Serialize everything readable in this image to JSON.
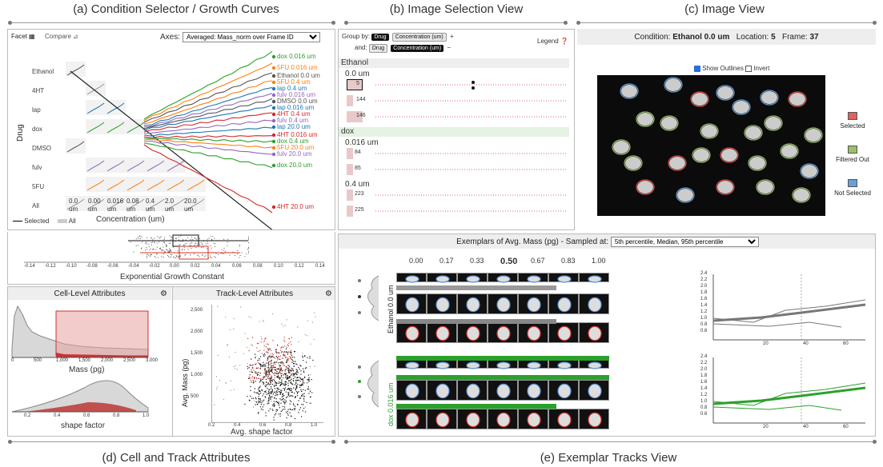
{
  "titles": {
    "a": "(a) Condition Selector / Growth Curves",
    "b": "(b) Image Selection View",
    "c": "(c) Image View",
    "d": "(d) Cell and Track Attributes",
    "e": "(e) Exemplar Tracks View"
  },
  "panelA": {
    "facet_label": "Facet",
    "compare_label": "Compare",
    "axes_label": "Axes:",
    "axes_value": "Averaged: Mass_norm over Frame ID",
    "drug_axis_label": "Drug",
    "drugs": [
      "Ethanol",
      "4HT",
      "lap",
      "dox",
      "DMSO",
      "fulv",
      "5FU",
      "All"
    ],
    "concentrations": [
      "0.0 um",
      "0.00 um",
      "0.016 um",
      "0.08 um",
      "0.4 um",
      "2.0 um",
      "20.0 um"
    ],
    "concentration_axis_label": "Concentration (um)",
    "legend_selected": "Selected",
    "legend_all": "All",
    "curve_labels": [
      {
        "text": "dox 0.016 um",
        "color": "#2ca02c"
      },
      {
        "text": "5FU 0.016 um",
        "color": "#ff7f0e"
      },
      {
        "text": "Ethanol 0.0 um",
        "color": "#555555"
      },
      {
        "text": "5FU 0.4 um",
        "color": "#ff7f0e"
      },
      {
        "text": "lap 0.4 um",
        "color": "#1f77b4"
      },
      {
        "text": "fulv 0.016 um",
        "color": "#9467bd"
      },
      {
        "text": "DMSO 0.0 um",
        "color": "#555555"
      },
      {
        "text": "lap 0.016 um",
        "color": "#1f77b4"
      },
      {
        "text": "4HT 0.4 um",
        "color": "#d62728"
      },
      {
        "text": "fulv 0.4 um",
        "color": "#9467bd"
      },
      {
        "text": "lap 20.0 um",
        "color": "#1f77b4"
      },
      {
        "text": "4HT 0.016 um",
        "color": "#d62728"
      },
      {
        "text": "dox 0.4 um",
        "color": "#2ca02c"
      },
      {
        "text": "5FU 20.0 um",
        "color": "#ff7f0e"
      },
      {
        "text": "fulv 20.0 um",
        "color": "#9467bd"
      },
      {
        "text": "dox 20.0 um",
        "color": "#2ca02c"
      },
      {
        "text": "4HT 20.0 um",
        "color": "#d62728"
      }
    ],
    "box_ticks": [
      "-0.14",
      "-0.12",
      "-0.10",
      "-0.08",
      "-0.06",
      "-0.04",
      "-0.02",
      "0.00",
      "0.02",
      "0.04",
      "0.06",
      "0.08",
      "0.10",
      "0.12",
      "0.14"
    ],
    "box_axis_label": "Exponential Growth Constant"
  },
  "panelB": {
    "group_by_label": "Group by:",
    "and_label": "and:",
    "pill_drug": "Drug",
    "pill_conc": "Concentration (um)",
    "plus": "+",
    "minus": "−",
    "legend_label": "Legend",
    "groups": [
      {
        "name": "Ethanol",
        "color": "#eeeeee",
        "rows": [
          {
            "conc": "0.0 um",
            "items": [
              "5",
              "144",
              "146"
            ]
          }
        ]
      },
      {
        "name": "dox",
        "color": "#e6f2e2",
        "rows": [
          {
            "conc": "0.016 um",
            "items": [
              "84",
              "85"
            ]
          },
          {
            "conc": "0.4 um",
            "items": [
              "223",
              "225"
            ]
          }
        ]
      }
    ]
  },
  "panelC": {
    "condition_label": "Condition:",
    "condition_value": "Ethanol 0.0 um",
    "location_label": "Location:",
    "location_value": "5",
    "frame_label": "Frame:",
    "frame_value": "37",
    "show_outlines": "Show Outlines",
    "invert": "Invert",
    "legend": [
      {
        "label": "Selected",
        "color": "#e06060"
      },
      {
        "label": "Filtered Out",
        "color": "#9bbf6b"
      },
      {
        "label": "Not Selected",
        "color": "#6a9fd8"
      }
    ]
  },
  "panelD": {
    "cell_title": "Cell-Level Attributes",
    "track_title": "Track-Level Attributes",
    "mass_ticks": [
      "0",
      "500",
      "1,000",
      "1,500",
      "2,000",
      "2,500",
      "3,000"
    ],
    "mass_label": "Mass (pg)",
    "shape_ticks": [
      "0.2",
      "0.4",
      "0.6",
      "0.8",
      "1.0"
    ],
    "shape_label": "shape factor",
    "scatter_y_ticks": [
      "2,500",
      "2,000",
      "1,500",
      "1,000",
      "500"
    ],
    "scatter_y_label": "Avg. Mass (pg)",
    "scatter_x_ticks": [
      "0.2",
      "0.4",
      "0.6",
      "0.8",
      "1.0"
    ],
    "scatter_x_label": "Avg. shape factor"
  },
  "panelE": {
    "header_label": "Exemplars of Avg. Mass (pg) - Sampled at:",
    "sample_value": "5th percentile, Median, 95th percentile",
    "columns": [
      "0.00",
      "0.17",
      "0.33",
      "0.50",
      "0.67",
      "0.83",
      "1.00"
    ],
    "group1_label": "Ethanol 0.0 um",
    "group2_label": "dox 0.016 um",
    "line_y_ticks": [
      "2.4",
      "2.2",
      "2.0",
      "1.8",
      "1.6",
      "1.4",
      "1.2",
      "1.0",
      "0.8",
      "0.6"
    ],
    "line_x_ticks": [
      "20",
      "40",
      "60"
    ]
  }
}
